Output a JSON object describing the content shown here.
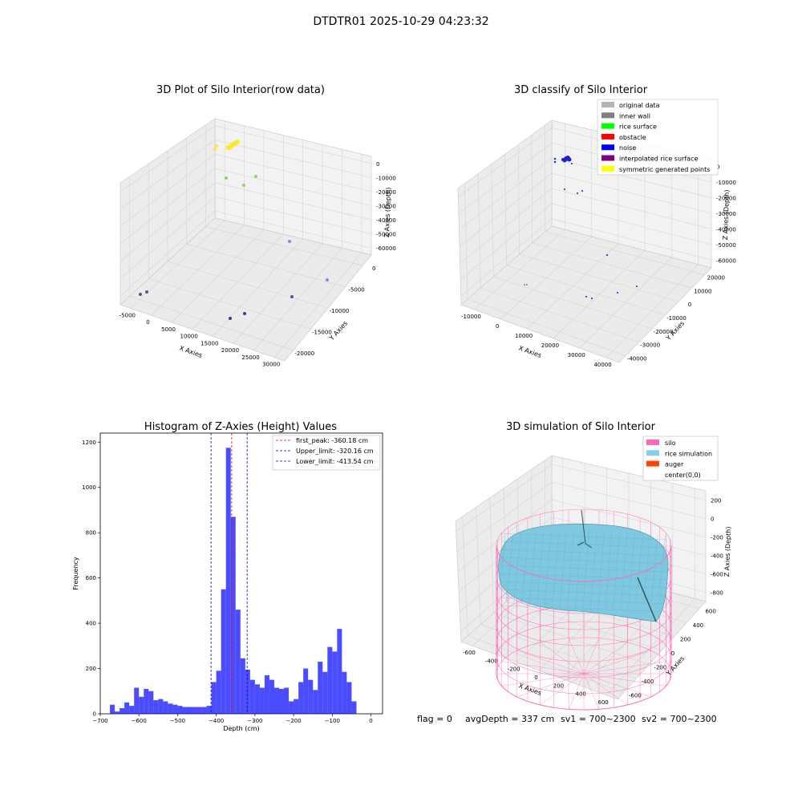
{
  "figure": {
    "suptitle": "DTDTR01 2025-10-29 04:23:32",
    "footer": {
      "flag": "flag = 0",
      "avgdepth": "avgDepth = 337 cm",
      "sv1": "sv1 = 700~2300",
      "sv2": "sv2 = 700~2300"
    }
  },
  "chart_data": [
    {
      "type": "scatter",
      "projection": "3d",
      "title": "3D Plot of Silo Interior(row data)",
      "xlabel": "X Axies",
      "ylabel": "Y Axies",
      "zlabel": "Z Axies (Depth)",
      "xticks": [
        "-5000",
        "0",
        "5000",
        "10000",
        "15000",
        "20000",
        "25000",
        "30000"
      ],
      "yticks": [
        "0",
        "-5000",
        "-10000",
        "-15000",
        "-20000"
      ],
      "zticks": [
        "0",
        "-10000",
        "-20000",
        "-30000",
        "-40000",
        "-50000",
        "-60000"
      ],
      "colormap": "viridis",
      "grid": true
    },
    {
      "type": "scatter",
      "projection": "3d",
      "title": "3D classify of Silo Interior",
      "xlabel": "X Axies",
      "ylabel": "Y Axies",
      "zlabel": "Z Axies (Depth)",
      "xticks": [
        "-10000",
        "0",
        "10000",
        "20000",
        "30000",
        "40000"
      ],
      "yticks": [
        "20000",
        "10000",
        "0",
        "-10000",
        "-20000",
        "-30000",
        "-40000"
      ],
      "zticks": [
        "0",
        "-10000",
        "-20000",
        "-30000",
        "-40000",
        "-50000",
        "-60000"
      ],
      "legend_position": "top-right",
      "legend": [
        {
          "label": "original data",
          "color": "#b3b3b3"
        },
        {
          "label": "inner wall",
          "color": "#808080"
        },
        {
          "label": "rice surface",
          "color": "#00ff00"
        },
        {
          "label": "obstacle",
          "color": "#ff0000"
        },
        {
          "label": "noise",
          "color": "#0000ff"
        },
        {
          "label": "interpolated rice surface",
          "color": "#800080"
        },
        {
          "label": "symmetric generated points",
          "color": "#ffff00"
        }
      ],
      "grid": true
    },
    {
      "type": "bar",
      "subtype": "histogram",
      "title": "Histogram of Z-Axies (Height) Values",
      "xlabel": "Depth (cm)",
      "ylabel": "Frequency",
      "xlim": [
        -700,
        30
      ],
      "ylim": [
        0,
        1240
      ],
      "xticks": [
        -700,
        -600,
        -500,
        -400,
        -300,
        -200,
        -100,
        0
      ],
      "yticks": [
        0,
        200,
        400,
        600,
        800,
        1000,
        1200
      ],
      "bin_width": 12.5,
      "bin_start": -675,
      "values": [
        40,
        10,
        25,
        50,
        35,
        115,
        75,
        110,
        100,
        60,
        65,
        55,
        45,
        40,
        35,
        30,
        30,
        30,
        30,
        30,
        35,
        140,
        190,
        550,
        1175,
        870,
        460,
        245,
        195,
        150,
        130,
        115,
        170,
        150,
        115,
        110,
        115,
        55,
        65,
        140,
        200,
        150,
        105,
        230,
        185,
        295,
        275,
        375,
        185,
        140,
        55
      ],
      "color": "#0000ff",
      "lines": [
        {
          "label": "first_peak: -360.18 cm",
          "x": -360.18,
          "color": "#ff0000"
        },
        {
          "label": "Upper_limit: -320.16 cm",
          "x": -320.16,
          "color": "#0000cc"
        },
        {
          "label": "Lower_limit: -413.54 cm",
          "x": -413.54,
          "color": "#0000cc"
        }
      ],
      "legend_position": "top-right"
    },
    {
      "type": "surface",
      "projection": "3d",
      "title": "3D simulation of Silo Interior",
      "xlabel": "X Axies",
      "ylabel": "Y Axies",
      "zlabel": "Z Axies (Depth)",
      "xticks": [
        "-600",
        "-400",
        "-200",
        "0",
        "200",
        "400",
        "600"
      ],
      "yticks": [
        "600",
        "400",
        "200",
        "0",
        "-200",
        "-400",
        "-600"
      ],
      "zticks": [
        "200",
        "0",
        "-200",
        "-400",
        "-600",
        "-800"
      ],
      "legend_position": "top-right",
      "legend": [
        {
          "label": "silo",
          "color": "#ff69b4"
        },
        {
          "label": "rice simulation",
          "color": "#87ceeb"
        },
        {
          "label": "auger",
          "color": "#ff4500"
        },
        {
          "label": "center(0,0)",
          "color": "#ffffff"
        }
      ],
      "grid": true
    }
  ]
}
